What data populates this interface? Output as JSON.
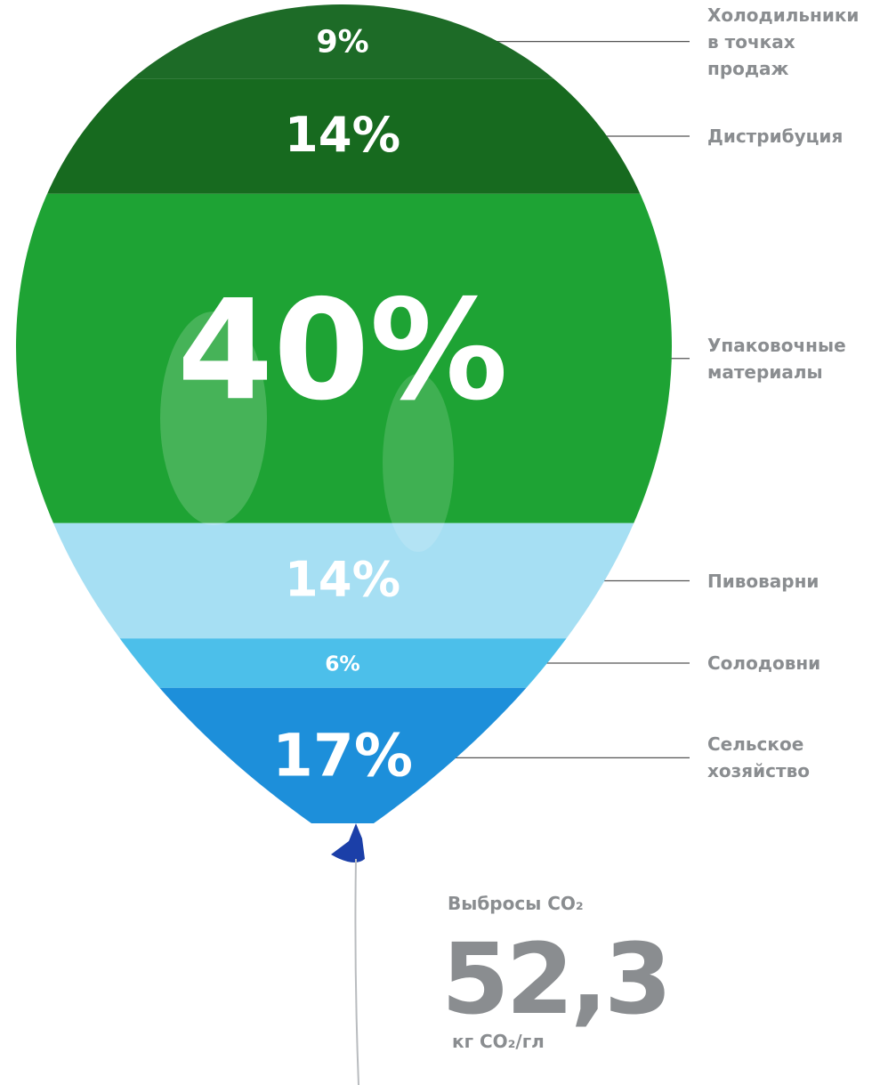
{
  "chart_data": {
    "type": "balloon",
    "categories": [
      "Холодильники в точках продаж",
      "Дистрибуция",
      "Упаковочные материалы",
      "Пивоварни",
      "Солодовни",
      "Сельское хозяйство"
    ],
    "values": [
      9,
      14,
      40,
      14,
      6,
      17
    ],
    "value_labels": [
      "9%",
      "14%",
      "40%",
      "14%",
      "6%",
      "17%"
    ],
    "colors": [
      "#1d6b27",
      "#176a1f",
      "#1ea334",
      "#a6dff3",
      "#4cbfea",
      "#1d8fda"
    ],
    "total_title": "Выбросы CO₂",
    "total": {
      "value": 52.3,
      "label": "52,3"
    },
    "total_unit": "кг CO₂/гл"
  }
}
